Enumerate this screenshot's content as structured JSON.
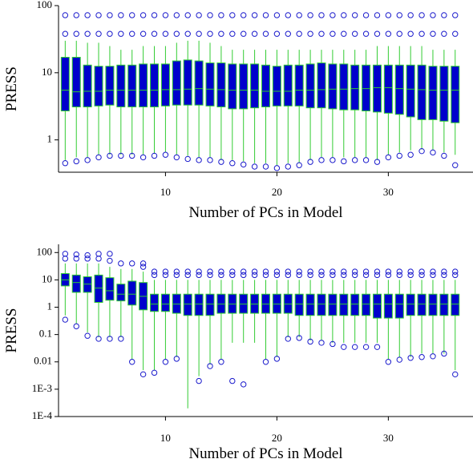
{
  "chart_data": [
    {
      "type": "box",
      "x_label": "Number of PCs in Model",
      "y_label": "PRESS",
      "log_y": true,
      "xlim": [
        0.4,
        37.6
      ],
      "xticks": [
        10,
        20,
        30
      ],
      "ylim": [
        0.33,
        100
      ],
      "yticks": [
        1,
        10,
        100
      ],
      "box_color": "#0000cc",
      "line_color": "#33cc33",
      "outlier_color": "#1a1acc",
      "x": [
        1,
        2,
        3,
        4,
        5,
        6,
        7,
        8,
        9,
        10,
        11,
        12,
        13,
        14,
        15,
        16,
        17,
        18,
        19,
        20,
        21,
        22,
        23,
        24,
        25,
        26,
        27,
        28,
        29,
        30,
        31,
        32,
        33,
        34,
        35,
        36
      ],
      "low": [
        0.5,
        0.55,
        0.55,
        0.6,
        0.6,
        0.6,
        0.6,
        0.6,
        0.62,
        0.65,
        0.6,
        0.58,
        0.55,
        0.55,
        0.5,
        0.5,
        0.48,
        0.45,
        0.45,
        0.42,
        0.45,
        0.45,
        0.5,
        0.55,
        0.55,
        0.55,
        0.55,
        0.55,
        0.5,
        0.6,
        0.65,
        0.7,
        0.72,
        0.7,
        0.65,
        0.6
      ],
      "q1": [
        2.7,
        3.1,
        3.1,
        3.2,
        3.3,
        3.1,
        3.1,
        3.1,
        3.1,
        3.2,
        3.3,
        3.3,
        3.3,
        3.2,
        3.1,
        2.9,
        2.9,
        3,
        3.1,
        3.2,
        3.2,
        3.2,
        3,
        3,
        2.9,
        2.8,
        2.8,
        2.7,
        2.6,
        2.5,
        2.4,
        2.2,
        2,
        2,
        1.9,
        1.8
      ],
      "median": [
        5.5,
        5.2,
        5.3,
        5.3,
        5.5,
        5.5,
        5.5,
        5.5,
        5.5,
        5.6,
        5.6,
        5.7,
        5.8,
        5.7,
        5.6,
        5.5,
        5.5,
        5.5,
        5.3,
        5.3,
        5.3,
        5.5,
        5.5,
        5.6,
        5.7,
        5.7,
        5.8,
        5.8,
        6,
        6,
        5.8,
        5.7,
        5.6,
        5.5,
        5.5,
        5.5
      ],
      "q3": [
        17,
        17,
        13,
        12.5,
        12.5,
        13,
        13,
        13.5,
        13.5,
        13.5,
        15,
        15.5,
        15,
        14,
        14,
        13.5,
        13.5,
        13.5,
        13,
        12.5,
        13,
        13,
        13.5,
        14,
        13.5,
        13.5,
        13,
        13,
        13,
        13,
        13,
        13,
        13,
        12.5,
        12.5,
        12.5
      ],
      "high": [
        30,
        30,
        28,
        28,
        25,
        22,
        22,
        25,
        25,
        25,
        28,
        30,
        30,
        28,
        25,
        22,
        22,
        22,
        22,
        22,
        22,
        22,
        22,
        22,
        22,
        22,
        22,
        22,
        25,
        25,
        25,
        25,
        25,
        22,
        22,
        22
      ],
      "outliers": [
        [
          0.45,
          38,
          72
        ],
        [
          0.48,
          38,
          72
        ],
        [
          0.5,
          38,
          72
        ],
        [
          0.55,
          38,
          72
        ],
        [
          0.58,
          38,
          72
        ],
        [
          0.58,
          38,
          72
        ],
        [
          0.58,
          38,
          72
        ],
        [
          0.55,
          38,
          72
        ],
        [
          0.58,
          38,
          72
        ],
        [
          0.6,
          38,
          72
        ],
        [
          0.55,
          38,
          72
        ],
        [
          0.52,
          38,
          72
        ],
        [
          0.5,
          38,
          72
        ],
        [
          0.5,
          38,
          72
        ],
        [
          0.47,
          38,
          72
        ],
        [
          0.45,
          38,
          72
        ],
        [
          0.43,
          38,
          72
        ],
        [
          0.4,
          38,
          72
        ],
        [
          0.4,
          38,
          72
        ],
        [
          0.38,
          38,
          72
        ],
        [
          0.4,
          38,
          72
        ],
        [
          0.42,
          38,
          72
        ],
        [
          0.47,
          38,
          72
        ],
        [
          0.5,
          38,
          72
        ],
        [
          0.5,
          38,
          72
        ],
        [
          0.48,
          38,
          72
        ],
        [
          0.5,
          38,
          72
        ],
        [
          0.5,
          38,
          72
        ],
        [
          0.47,
          38,
          72
        ],
        [
          0.55,
          38,
          72
        ],
        [
          0.58,
          38,
          72
        ],
        [
          0.6,
          38,
          72
        ],
        [
          0.68,
          38,
          72
        ],
        [
          0.65,
          38,
          72
        ],
        [
          0.58,
          38,
          72
        ],
        [
          0.42,
          38,
          72
        ]
      ]
    },
    {
      "type": "box",
      "x_label": "Number of PCs in Model",
      "y_label": "PRESS",
      "log_y": true,
      "xlim": [
        0.4,
        37.6
      ],
      "xticks": [
        10,
        20,
        30
      ],
      "ylim": [
        0.0001,
        200
      ],
      "yticks": [
        {
          "value": 0.0001,
          "label": "1E-4"
        },
        {
          "value": 0.001,
          "label": "1E-3"
        },
        0.01,
        0.1,
        1,
        10,
        100
      ],
      "box_color": "#0000cc",
      "line_color": "#33cc33",
      "outlier_color": "#1a1acc",
      "x": [
        1,
        2,
        3,
        4,
        5,
        6,
        7,
        8,
        9,
        10,
        11,
        12,
        13,
        14,
        15,
        16,
        17,
        18,
        19,
        20,
        21,
        22,
        23,
        24,
        25,
        26,
        27,
        28,
        29,
        30,
        31,
        32,
        33,
        34,
        35,
        36
      ],
      "low": [
        0.5,
        0.25,
        0.12,
        0.08,
        0.08,
        0.08,
        0.012,
        0.005,
        0.005,
        0.012,
        0.015,
        0.0002,
        0.003,
        0.008,
        0.012,
        0.05,
        0.05,
        0.05,
        0.012,
        0.015,
        0.08,
        0.08,
        0.06,
        0.06,
        0.05,
        0.05,
        0.05,
        0.05,
        0.05,
        0.012,
        0.015,
        0.015,
        0.02,
        0.02,
        0.02,
        0.005
      ],
      "q1": [
        6,
        3.5,
        3.5,
        1.5,
        1.8,
        1.7,
        1.2,
        0.8,
        0.7,
        0.7,
        0.6,
        0.5,
        0.5,
        0.5,
        0.6,
        0.6,
        0.6,
        0.6,
        0.6,
        0.6,
        0.6,
        0.5,
        0.5,
        0.5,
        0.5,
        0.5,
        0.5,
        0.5,
        0.4,
        0.4,
        0.4,
        0.5,
        0.5,
        0.5,
        0.5,
        0.5
      ],
      "median": [
        10,
        8,
        7,
        5,
        4,
        3,
        3,
        2.5,
        1.3,
        1.3,
        1.3,
        1.3,
        1.3,
        1.3,
        1.3,
        1.3,
        1.3,
        1.3,
        1.3,
        1.3,
        1.3,
        1.3,
        1.3,
        1.3,
        1.3,
        1.3,
        1.3,
        1.3,
        1.3,
        1.3,
        1.3,
        1.3,
        1.3,
        1.3,
        1.3,
        1.3
      ],
      "q3": [
        17,
        15,
        13,
        15,
        12,
        7,
        9,
        8,
        3,
        3,
        3,
        3,
        3,
        3,
        3,
        3,
        3,
        3,
        3,
        3,
        3,
        3,
        3,
        3,
        3,
        3,
        3,
        3,
        3,
        3,
        3,
        3,
        3,
        3,
        3,
        3
      ],
      "high": [
        40,
        40,
        40,
        40,
        30,
        25,
        25,
        20,
        10,
        10,
        10,
        10,
        10,
        10,
        10,
        10,
        10,
        10,
        10,
        10,
        10,
        10,
        10,
        10,
        10,
        10,
        10,
        10,
        10,
        10,
        10,
        10,
        10,
        10,
        10,
        10
      ],
      "outliers": [
        [
          0.35,
          60,
          90
        ],
        [
          0.2,
          60,
          85
        ],
        [
          0.09,
          60,
          80
        ],
        [
          0.07,
          60,
          90
        ],
        [
          0.07,
          50,
          90
        ],
        [
          0.07,
          40
        ],
        [
          0.01,
          40
        ],
        [
          0.0035,
          30,
          40
        ],
        [
          0.004,
          15,
          20
        ],
        [
          0.01,
          15,
          20
        ],
        [
          0.013,
          15,
          20
        ],
        [
          15,
          20
        ],
        [
          0.002,
          15,
          20
        ],
        [
          0.007,
          15,
          20
        ],
        [
          0.01,
          15,
          20
        ],
        [
          0.002,
          15,
          20
        ],
        [
          0.0015,
          15,
          20
        ],
        [
          15,
          20
        ],
        [
          0.01,
          15,
          20
        ],
        [
          0.013,
          15,
          20
        ],
        [
          0.07,
          15,
          20
        ],
        [
          0.075,
          15,
          20
        ],
        [
          0.055,
          15,
          20
        ],
        [
          0.05,
          15,
          20
        ],
        [
          0.045,
          15,
          20
        ],
        [
          0.035,
          15,
          20
        ],
        [
          0.035,
          15,
          20
        ],
        [
          0.035,
          15,
          20
        ],
        [
          0.035,
          15,
          20
        ],
        [
          0.01,
          15,
          20
        ],
        [
          0.012,
          15,
          20
        ],
        [
          0.014,
          15,
          20
        ],
        [
          0.015,
          15,
          20
        ],
        [
          0.016,
          15,
          20
        ],
        [
          0.02,
          15,
          20
        ],
        [
          0.0035,
          15,
          20
        ]
      ]
    }
  ]
}
